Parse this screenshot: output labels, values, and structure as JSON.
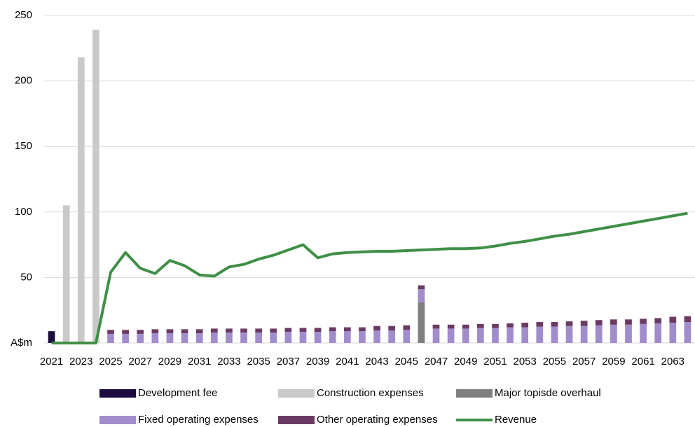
{
  "chart_data": {
    "type": "bar-line",
    "categories": [
      "2021",
      null,
      "2023",
      null,
      "2025",
      null,
      "2027",
      null,
      "2029",
      null,
      "2031",
      null,
      "2033",
      null,
      "2035",
      null,
      "2037",
      null,
      "2039",
      null,
      "2041",
      null,
      "2043",
      null,
      "2045",
      null,
      "2047",
      null,
      "2049",
      null,
      "2051",
      null,
      "2053",
      null,
      "2055",
      null,
      "2057",
      null,
      "2059",
      null,
      "2061",
      null,
      "2063",
      null
    ],
    "series": [
      {
        "name": "Development fee",
        "color": "#1c0c40",
        "kind": "bar",
        "values": [
          9,
          null,
          null,
          null,
          null,
          null,
          null,
          null,
          null,
          null,
          null,
          null,
          null,
          null,
          null,
          null,
          null,
          null,
          null,
          null,
          null,
          null,
          null,
          null,
          null,
          null,
          null,
          null,
          null,
          null,
          null,
          null,
          null,
          null,
          null,
          null,
          null,
          null,
          null,
          null,
          null,
          null,
          null,
          null
        ]
      },
      {
        "name": "Construction expenses",
        "color": "#c9c9c9",
        "kind": "bar",
        "values": [
          null,
          105,
          218,
          239,
          null,
          null,
          null,
          null,
          null,
          null,
          null,
          null,
          null,
          null,
          null,
          null,
          null,
          null,
          null,
          null,
          null,
          null,
          null,
          null,
          null,
          null,
          null,
          null,
          null,
          null,
          null,
          null,
          null,
          null,
          null,
          null,
          null,
          null,
          null,
          null,
          null,
          null,
          null,
          null
        ]
      },
      {
        "name": "Major topisde overhaul",
        "color": "#7f7f7f",
        "kind": "bar",
        "values": [
          null,
          null,
          null,
          null,
          null,
          null,
          null,
          null,
          null,
          null,
          null,
          null,
          null,
          null,
          null,
          null,
          null,
          null,
          null,
          null,
          null,
          null,
          null,
          null,
          null,
          31,
          null,
          null,
          null,
          null,
          null,
          null,
          null,
          null,
          null,
          null,
          null,
          null,
          null,
          null,
          null,
          null,
          null,
          null
        ]
      },
      {
        "name": "Fixed operating expenses",
        "color": "#a18dcc",
        "kind": "bar",
        "values": [
          null,
          null,
          null,
          null,
          7,
          7,
          7,
          7.5,
          7.5,
          7.5,
          7.5,
          8,
          8,
          8,
          8,
          8,
          8.5,
          8.5,
          8.5,
          9,
          9,
          9,
          9.5,
          9.5,
          10,
          10,
          11,
          11,
          11,
          11.5,
          11.5,
          12,
          12,
          12.5,
          12.5,
          13,
          13,
          13.5,
          14,
          14,
          14.5,
          15,
          15.5,
          16
        ]
      },
      {
        "name": "Other operating expenses",
        "color": "#6b3a63",
        "kind": "bar",
        "values": [
          null,
          null,
          null,
          null,
          3,
          3,
          3,
          3,
          3,
          3,
          3,
          3,
          3,
          3,
          3,
          3,
          3,
          3,
          3,
          3,
          3,
          3,
          3.5,
          3.5,
          3.5,
          3,
          3,
          3,
          3,
          3,
          3,
          3,
          3.5,
          3.5,
          3.5,
          3.5,
          4,
          4,
          4,
          4,
          4,
          4,
          4.5,
          4.5
        ]
      },
      {
        "name": "Revenue",
        "color": "#3f8f46",
        "kind": "line",
        "values": [
          0,
          0,
          0,
          0,
          54,
          69,
          57,
          53,
          63,
          59,
          52,
          51,
          58,
          60,
          64,
          67,
          71,
          75,
          65,
          68,
          69,
          69.5,
          70,
          70,
          70.5,
          71,
          71.5,
          72,
          72,
          72.5,
          74,
          76,
          77.5,
          79.5,
          81.5,
          83,
          85,
          87,
          89,
          91,
          93,
          95,
          97,
          99
        ]
      }
    ],
    "ylim": [
      0,
      250
    ],
    "yticks": [
      {
        "value": 0,
        "label": "A$m"
      },
      50,
      100,
      150,
      200,
      250
    ],
    "grid": true
  }
}
